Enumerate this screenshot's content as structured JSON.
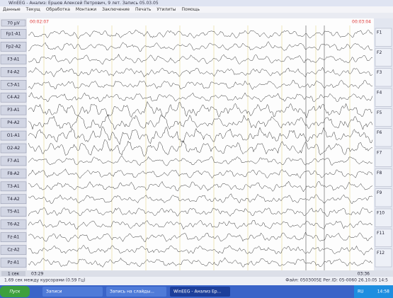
{
  "window": {
    "title": "WinEEG - Анализ: Ершов Алексей Петрович, 9 лет. Запись 05.03.05",
    "menu": [
      "Данные",
      "Текущ",
      "Обработка",
      "Монтажи",
      "Заключение",
      "Печать",
      "Утилиты",
      "Помощь"
    ]
  },
  "eeg": {
    "scale": "70 µV",
    "time_left": "00:02:07",
    "time_right": "00:03:04",
    "channels": [
      "Fp1-A1",
      "Fp2-A2",
      "F3-A1",
      "F4-A2",
      "C3-A1",
      "C4-A2",
      "P3-A1",
      "P4-A2",
      "O1-A1",
      "O2-A2",
      "F7-A1",
      "F8-A2",
      "T3-A1",
      "T4-A2",
      "T5-A1",
      "T6-A2",
      "Fz-A1",
      "Cz-A2",
      "Pz-A1"
    ],
    "speed": "1 сек",
    "scroll_left": "03:29",
    "scroll_right": "03:36"
  },
  "side_panel": {
    "keys": [
      "F1",
      "F2",
      "F3",
      "F4",
      "F5",
      "F6",
      "F7",
      "F8",
      "F9",
      "F10",
      "F11",
      "F12"
    ]
  },
  "status": {
    "left": "1.69 сек между курсорами (0.59 Гц)",
    "right": "Файл: 0503005Е  Рег.ID: 05-0060  26.10.05  14:5"
  },
  "taskbar": {
    "start": "Пуск",
    "items": [
      "Записи",
      "Запись на слайды...",
      "WinEEG - Анализ Ер..."
    ],
    "lang": "RU",
    "clock": "14:58"
  }
}
